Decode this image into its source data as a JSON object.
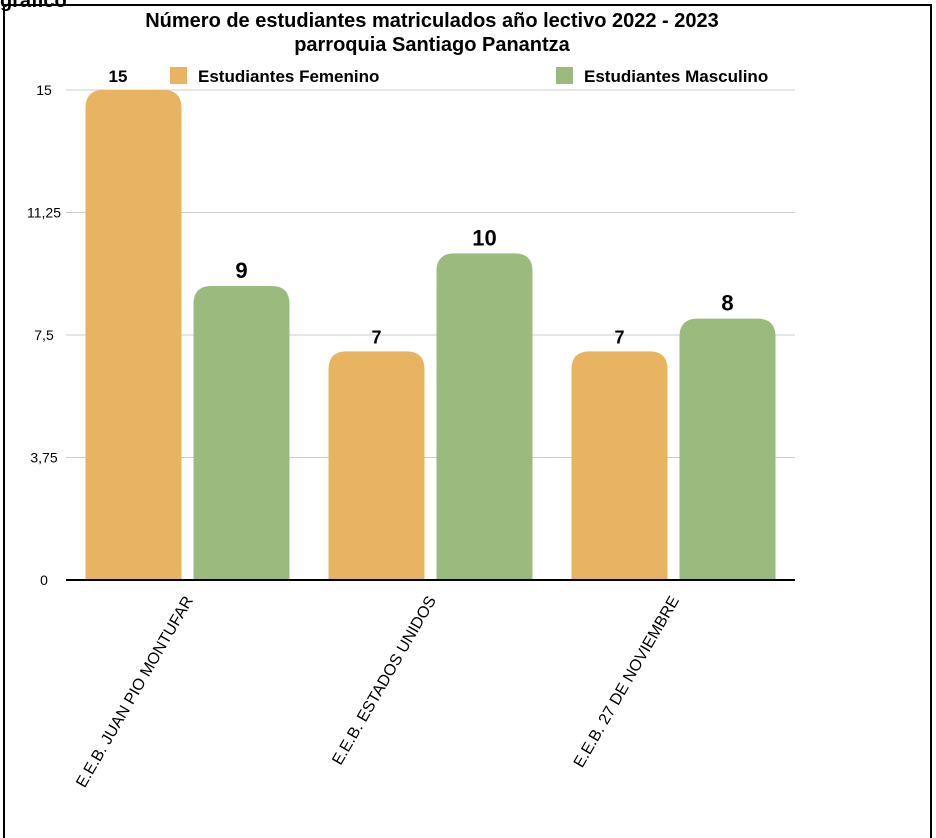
{
  "partial_text": "gráfico",
  "chart_data": {
    "type": "bar",
    "title": "Número de estudiantes matriculados año lectivo 2022 - 2023",
    "subtitle": "parroquia Santiago Panantza",
    "categories": [
      "E.E.B. JUAN PIO MONTUFAR",
      "E.E.B. ESTADOS UNIDOS",
      "E.E.B. 27 DE NOVIEMBRE"
    ],
    "series": [
      {
        "name": "Estudiantes Femenino",
        "values": [
          15,
          7,
          7
        ],
        "color": "#E8B462"
      },
      {
        "name": "Estudiantes Masculino",
        "values": [
          9,
          10,
          8
        ],
        "color": "#9BBB7E"
      }
    ],
    "ylim": [
      0,
      15
    ],
    "yticks": [
      "0",
      "3,75",
      "7,5",
      "11,25",
      "15"
    ],
    "grid": true,
    "legend": "top",
    "xlabel": "",
    "ylabel": ""
  }
}
